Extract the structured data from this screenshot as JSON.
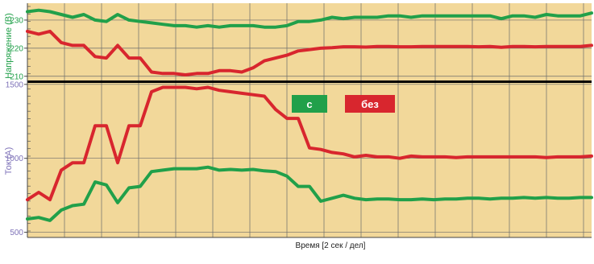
{
  "chart_data": [
    {
      "type": "line",
      "ylabel": "Напряжение (В)",
      "yticks": [
        210,
        220,
        230
      ],
      "ylim": [
        208.5,
        236
      ],
      "xlim": [
        0,
        100
      ],
      "grid": true,
      "series": [
        {
          "color": "#21a04a",
          "x": [
            0,
            2,
            4,
            6,
            8,
            10,
            12,
            14,
            16,
            18,
            20,
            22,
            24,
            26,
            28,
            30,
            32,
            34,
            36,
            38,
            40,
            42,
            44,
            46,
            48,
            50,
            52,
            54,
            56,
            58,
            60,
            62,
            64,
            66,
            68,
            70,
            72,
            74,
            76,
            78,
            80,
            82,
            84,
            86,
            88,
            90,
            92,
            94,
            96,
            98,
            100
          ],
          "values": [
            233,
            233.5,
            233,
            232,
            231,
            232,
            230,
            229.5,
            232,
            230,
            229.5,
            229,
            228.5,
            228,
            228,
            227.5,
            228,
            227.5,
            228,
            228,
            228,
            227.5,
            227.5,
            228,
            229.5,
            229.5,
            230,
            231,
            230.5,
            231,
            231,
            231,
            231.5,
            231.5,
            231,
            231.5,
            231.5,
            231.5,
            231.5,
            231.5,
            231.5,
            231.5,
            230.5,
            231.5,
            231.5,
            231,
            232,
            231.5,
            231.5,
            231.5,
            232.5
          ]
        },
        {
          "color": "#d8262e",
          "x": [
            0,
            2,
            4,
            6,
            8,
            10,
            12,
            14,
            16,
            18,
            20,
            22,
            24,
            26,
            28,
            30,
            32,
            34,
            36,
            38,
            40,
            42,
            44,
            46,
            48,
            50,
            52,
            54,
            56,
            58,
            60,
            62,
            64,
            66,
            68,
            70,
            72,
            74,
            76,
            78,
            80,
            82,
            84,
            86,
            88,
            90,
            92,
            94,
            96,
            98,
            100
          ],
          "values": [
            226,
            225,
            226,
            222,
            221,
            221,
            217,
            216.5,
            221,
            216.5,
            216.5,
            211.5,
            211,
            211,
            210.5,
            211,
            211,
            212,
            212,
            211.5,
            213,
            215.5,
            216.5,
            217.5,
            219,
            219.5,
            220,
            220.2,
            220.5,
            220.5,
            220.4,
            220.6,
            220.6,
            220.5,
            220.5,
            220.6,
            220.6,
            220.6,
            220.6,
            220.6,
            220.5,
            220.6,
            220.3,
            220.6,
            220.6,
            220.5,
            220.6,
            220.6,
            220.6,
            220.6,
            221
          ]
        }
      ]
    },
    {
      "type": "line",
      "ylabel": "Ток (А)",
      "xlabel": "Время [2 сек / дел]",
      "yticks": [
        500,
        1000,
        1500
      ],
      "ylim": [
        465,
        1510
      ],
      "xlim": [
        0,
        100
      ],
      "grid": true,
      "legend": [
        {
          "label": "с",
          "color": "#21a04a"
        },
        {
          "label": "без",
          "color": "#d8262e"
        }
      ],
      "legend_placement": "top-center",
      "series": [
        {
          "color": "#21a04a",
          "x": [
            0,
            2,
            4,
            6,
            8,
            10,
            12,
            14,
            16,
            18,
            20,
            22,
            24,
            26,
            28,
            30,
            32,
            34,
            36,
            38,
            40,
            42,
            44,
            46,
            48,
            50,
            52,
            54,
            56,
            58,
            60,
            62,
            64,
            66,
            68,
            70,
            72,
            74,
            76,
            78,
            80,
            82,
            84,
            86,
            88,
            90,
            92,
            94,
            96,
            98,
            100
          ],
          "values": [
            590,
            600,
            580,
            650,
            680,
            690,
            840,
            820,
            700,
            800,
            810,
            910,
            920,
            930,
            930,
            930,
            940,
            920,
            925,
            920,
            925,
            915,
            910,
            880,
            810,
            810,
            710,
            730,
            750,
            730,
            720,
            725,
            725,
            720,
            720,
            725,
            720,
            725,
            725,
            730,
            730,
            725,
            730,
            730,
            735,
            730,
            735,
            730,
            730,
            735,
            735
          ]
        },
        {
          "color": "#d8262e",
          "x": [
            0,
            2,
            4,
            6,
            8,
            10,
            12,
            14,
            16,
            18,
            20,
            22,
            24,
            26,
            28,
            30,
            32,
            34,
            36,
            38,
            40,
            42,
            44,
            46,
            48,
            50,
            52,
            54,
            56,
            58,
            60,
            62,
            64,
            66,
            68,
            70,
            72,
            74,
            76,
            78,
            80,
            82,
            84,
            86,
            88,
            90,
            92,
            94,
            96,
            98,
            100
          ],
          "values": [
            720,
            770,
            720,
            920,
            970,
            970,
            1220,
            1220,
            970,
            1220,
            1220,
            1450,
            1480,
            1480,
            1480,
            1470,
            1480,
            1460,
            1450,
            1440,
            1430,
            1420,
            1330,
            1270,
            1270,
            1070,
            1060,
            1040,
            1030,
            1010,
            1020,
            1010,
            1010,
            1000,
            1015,
            1010,
            1010,
            1010,
            1005,
            1010,
            1010,
            1010,
            1010,
            1010,
            1010,
            1010,
            1005,
            1010,
            1010,
            1010,
            1015
          ]
        }
      ]
    }
  ]
}
